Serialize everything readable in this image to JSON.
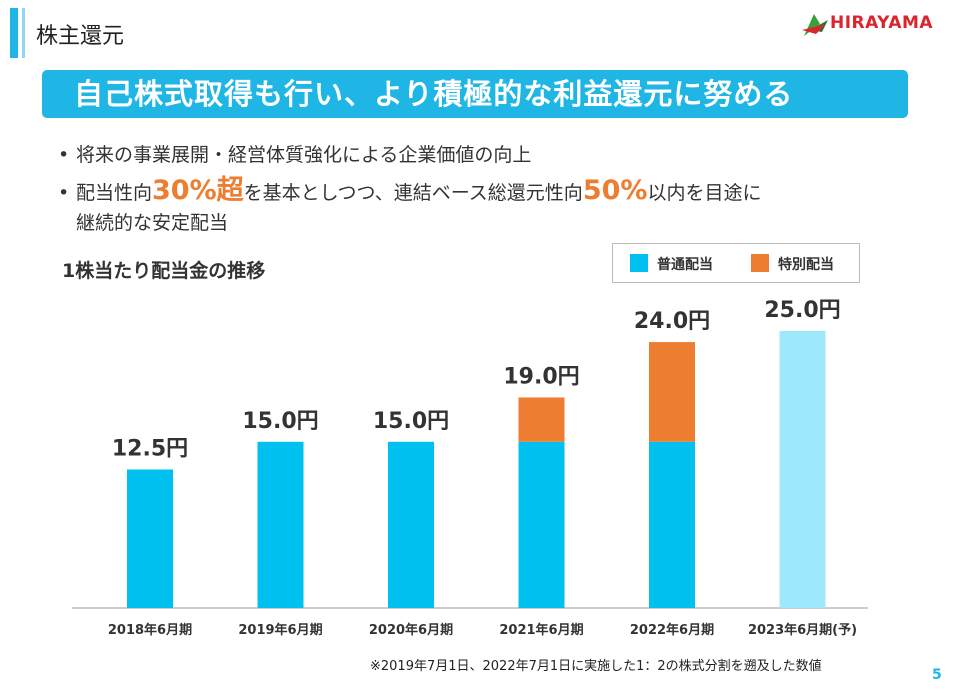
{
  "header": {
    "title": "株主還元"
  },
  "logo": {
    "text": "HIRAYAMA"
  },
  "banner": {
    "text": "自己株式取得も行い、より積極的な利益還元に努める"
  },
  "bullets": {
    "b1": "将来の事業展開・経営体質強化による企業価値の向上",
    "b2_pre": "配当性向",
    "b2_hl1": "30%超",
    "b2_mid": "を基本としつつ、連結ベース総還元性向",
    "b2_hl2": "50%",
    "b2_post": "以内を目途に",
    "b2_line2": "継続的な安定配当"
  },
  "chart_data": {
    "type": "bar",
    "title": "1株当たり配当金の推移",
    "categories": [
      "2018年6月期",
      "2019年6月期",
      "2020年6月期",
      "2021年6月期",
      "2022年6月期",
      "2023年6月期(予)"
    ],
    "series": [
      {
        "name": "普通配当",
        "values": [
          12.5,
          15.0,
          15.0,
          15.0,
          15.0,
          25.0
        ],
        "color": "#00c0ef",
        "forecast_color": "#9ee8fb"
      },
      {
        "name": "特別配当",
        "values": [
          0,
          0,
          0,
          4.0,
          9.0,
          0
        ],
        "color": "#ed7d31"
      }
    ],
    "totals": [
      "12.5円",
      "15.0円",
      "15.0円",
      "19.0円",
      "24.0円",
      "25.0円"
    ],
    "stacked": true,
    "ylim": [
      0,
      25
    ],
    "legend": "top-right"
  },
  "footnote": "※2019年7月1日、2022年7月1日に実施した1：2の株式分割を遡及した数値",
  "page_number": "5"
}
